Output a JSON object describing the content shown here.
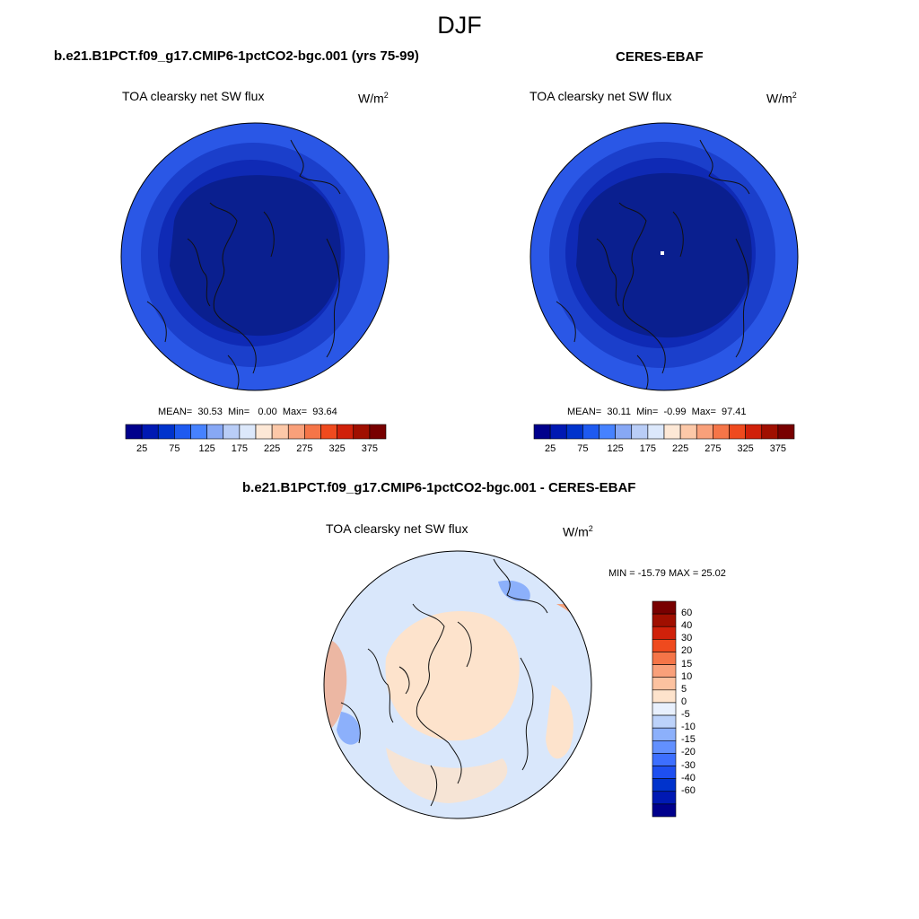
{
  "figure": {
    "season": "DJF"
  },
  "panels": [
    {
      "title": "b.e21.B1PCT.f09_g17.CMIP6-1pctCO2-bgc.001 (yrs 75-99)",
      "variable": "TOA clearsky net SW flux",
      "units_base": "W/m",
      "units_exp": "2",
      "stats": {
        "mean_label": "MEAN=",
        "mean": "30.53",
        "min_label": "Min=",
        "min": "0.00",
        "max_label": "Max=",
        "max": "93.64"
      }
    },
    {
      "title": "CERES-EBAF",
      "variable": "TOA clearsky net SW flux",
      "units_base": "W/m",
      "units_exp": "2",
      "stats": {
        "mean_label": "MEAN=",
        "mean": "30.11",
        "min_label": "Min=",
        "min": "-0.99",
        "max_label": "Max=",
        "max": "97.41"
      }
    },
    {
      "title": "b.e21.B1PCT.f09_g17.CMIP6-1pctCO2-bgc.001 - CERES-EBAF",
      "variable": "TOA clearsky net SW flux",
      "units_base": "W/m",
      "units_exp": "2",
      "stats": {
        "text": "MIN = -15.79 MAX =  25.02"
      }
    }
  ],
  "colorbar_abs": {
    "colors": [
      "#00008c",
      "#0019b3",
      "#0033cc",
      "#1e5af0",
      "#4682ff",
      "#87a8f5",
      "#b9cdf7",
      "#dce8fb",
      "#fde8d6",
      "#fcc8a8",
      "#f9a07a",
      "#f57548",
      "#ef4a1e",
      "#d0210a",
      "#a00f00",
      "#780000"
    ],
    "labels": [
      "25",
      "75",
      "125",
      "175",
      "225",
      "275",
      "325",
      "375"
    ]
  },
  "colorbar_diff": {
    "colors": [
      "#00008c",
      "#0019b3",
      "#0033cc",
      "#1e4ff0",
      "#3d6fff",
      "#6290ff",
      "#8cb0fb",
      "#bcd2fa",
      "#e8f0fd",
      "#fde3cc",
      "#fcc2a0",
      "#f9a07a",
      "#f57548",
      "#ef4a1e",
      "#d0210a",
      "#a00f00",
      "#780000"
    ],
    "labels": [
      "60",
      "40",
      "30",
      "20",
      "15",
      "10",
      "5",
      "0",
      "-5",
      "-10",
      "-15",
      "-20",
      "-30",
      "-40",
      "-60"
    ]
  },
  "colors": {
    "outer_ring": "#2a57e6",
    "mid_ring": "#1b3fcb",
    "inner_ring": "#0f2ab5",
    "core": "#0a1f8f",
    "diff_base": "#d9e7fb",
    "diff_warm": "#fde3cc",
    "diff_hot": "#f4a27d",
    "diff_cool": "#8cb0fb",
    "coast": "#111111"
  }
}
